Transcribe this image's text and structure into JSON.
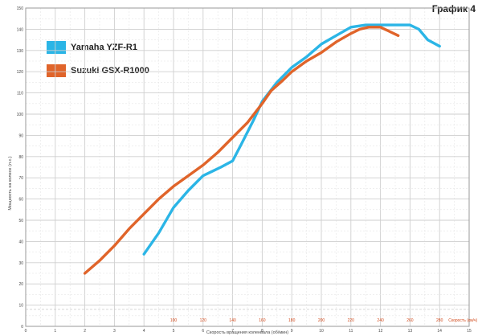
{
  "chart_title": "График 4",
  "legend": [
    {
      "label": "Yamaha YZF-R1",
      "color": "#2bb5e6"
    },
    {
      "label": "Suzuki GSX-R1000",
      "color": "#e0642a"
    }
  ],
  "chart_data": {
    "type": "line",
    "title": "График 4",
    "xlabel": "Скорость вращения коленвала (об/мин)",
    "ylabel": "Мощность на колесе (л.с.)",
    "x_range": [
      0,
      15
    ],
    "y_range": [
      0,
      150
    ],
    "x_ticks": [
      "0",
      "1",
      "2",
      "3",
      "4",
      "5",
      "6",
      "7",
      "8",
      "9",
      "10",
      "11",
      "12",
      "13",
      "14",
      "15"
    ],
    "y_ticks": [
      "0",
      "10",
      "20",
      "30",
      "40",
      "50",
      "60",
      "70",
      "80",
      "90",
      "100",
      "110",
      "120",
      "130",
      "140",
      "150"
    ],
    "speed_axis_label": "Скорость (км/ч)",
    "speed_ticks": [
      {
        "label": "100",
        "rpm": 5
      },
      {
        "label": "120",
        "rpm": 6
      },
      {
        "label": "140",
        "rpm": 7
      },
      {
        "label": "160",
        "rpm": 8
      },
      {
        "label": "180",
        "rpm": 9
      },
      {
        "label": "200",
        "rpm": 10
      },
      {
        "label": "220",
        "rpm": 11
      },
      {
        "label": "240",
        "rpm": 12
      },
      {
        "label": "260",
        "rpm": 13
      },
      {
        "label": "280",
        "rpm": 14
      }
    ],
    "grid": true,
    "legend_position": "top-left",
    "series": [
      {
        "name": "Yamaha YZF-R1",
        "color": "#2bb5e6",
        "points": [
          [
            4,
            34
          ],
          [
            4.5,
            44
          ],
          [
            5,
            56
          ],
          [
            5.5,
            64
          ],
          [
            6,
            71
          ],
          [
            6.3,
            73
          ],
          [
            6.6,
            75
          ],
          [
            7,
            78
          ],
          [
            7.3,
            86
          ],
          [
            7.7,
            97
          ],
          [
            8,
            106
          ],
          [
            8.5,
            115
          ],
          [
            9,
            122
          ],
          [
            9.5,
            127
          ],
          [
            10,
            133
          ],
          [
            10.5,
            137
          ],
          [
            11,
            141
          ],
          [
            11.5,
            142
          ],
          [
            12,
            142
          ],
          [
            12.5,
            142
          ],
          [
            13,
            142
          ],
          [
            13.3,
            140
          ],
          [
            13.6,
            135
          ],
          [
            14,
            132
          ]
        ]
      },
      {
        "name": "Suzuki GSX-R1000",
        "color": "#e0642a",
        "points": [
          [
            2,
            25
          ],
          [
            2.5,
            31
          ],
          [
            3,
            38
          ],
          [
            3.5,
            46
          ],
          [
            4,
            53
          ],
          [
            4.5,
            60
          ],
          [
            5,
            66
          ],
          [
            5.5,
            71
          ],
          [
            6,
            76
          ],
          [
            6.5,
            82
          ],
          [
            7,
            89
          ],
          [
            7.5,
            96
          ],
          [
            8,
            105
          ],
          [
            8.3,
            111
          ],
          [
            8.7,
            116
          ],
          [
            9,
            120
          ],
          [
            9.5,
            125
          ],
          [
            10,
            129
          ],
          [
            10.5,
            134
          ],
          [
            11,
            138
          ],
          [
            11.3,
            140
          ],
          [
            11.6,
            141
          ],
          [
            12,
            141
          ],
          [
            12.3,
            139
          ],
          [
            12.6,
            137
          ]
        ]
      }
    ]
  }
}
